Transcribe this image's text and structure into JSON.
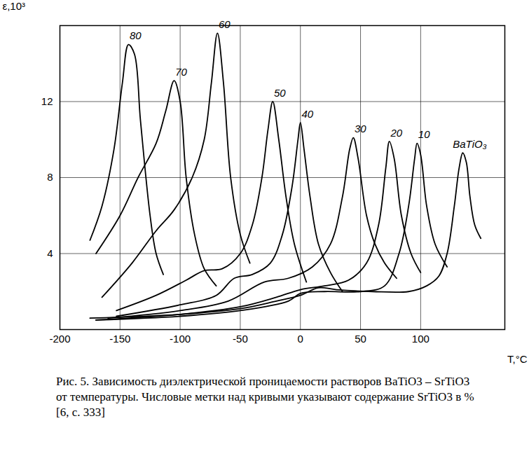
{
  "chart_data": {
    "type": "line",
    "caption": "Рис. 5.  Зависимость диэлектрической проницаемости растворов BaTiO3 – SrTiO3 от температуры.  Числовые метки над кривыми указывают содержание SrTiO3 в % [6, с. 333]",
    "x_label": "T,°C",
    "y_label": "ε,10³",
    "xlim": [
      -200,
      170
    ],
    "ylim": [
      0,
      16
    ],
    "xticks": [
      -200,
      -150,
      -100,
      -50,
      0,
      50,
      100
    ],
    "yticks": [
      4,
      8,
      12
    ],
    "grid": true,
    "data_labels": true,
    "series": [
      {
        "name": "80",
        "color": "#000000",
        "x": [
          -175,
          -165,
          -155,
          -148,
          -143,
          -138,
          -133,
          -125,
          -120,
          -114
        ],
        "values": [
          4.7,
          6.5,
          9.5,
          13,
          15,
          14.5,
          11,
          6,
          4,
          2.9
        ]
      },
      {
        "name": "70",
        "color": "#000000",
        "x": [
          -170,
          -150,
          -135,
          -120,
          -112,
          -105,
          -100,
          -95,
          -88,
          -80,
          -70
        ],
        "values": [
          4,
          6,
          8,
          9.8,
          11.5,
          13.1,
          12,
          8,
          5,
          3.2,
          2.3
        ]
      },
      {
        "name": "60",
        "color": "#000000",
        "x": [
          -165,
          -140,
          -120,
          -105,
          -90,
          -80,
          -74,
          -69,
          -64,
          -58,
          -50,
          -42
        ],
        "values": [
          1.7,
          3.5,
          5.2,
          6.3,
          8,
          10,
          13,
          15.6,
          13,
          8,
          5,
          3.5
        ]
      },
      {
        "name": "50",
        "color": "#000000",
        "x": [
          -153,
          -120,
          -95,
          -80,
          -65,
          -50,
          -40,
          -32,
          -27,
          -23,
          -18,
          -12,
          -5,
          5
        ],
        "values": [
          1,
          1.8,
          2.6,
          3.1,
          3.2,
          4,
          5.5,
          8,
          10.5,
          12,
          10,
          7,
          4.5,
          2.5
        ]
      },
      {
        "name": "40",
        "color": "#000000",
        "x": [
          -153,
          -100,
          -70,
          -55,
          -40,
          -25,
          -15,
          -7,
          -2,
          0,
          3,
          8,
          15,
          25,
          35
        ],
        "values": [
          0.7,
          1.3,
          1.8,
          2.7,
          2.9,
          3.5,
          5,
          7.5,
          10,
          10.9,
          9.5,
          7,
          4.5,
          3,
          2
        ]
      },
      {
        "name": "30",
        "color": "#000000",
        "x": [
          -160,
          -100,
          -60,
          -30,
          -10,
          10,
          25,
          35,
          41,
          44,
          48,
          55,
          62,
          70,
          80
        ],
        "values": [
          0.6,
          1,
          1.5,
          2.5,
          2.7,
          3.3,
          4.5,
          7,
          9.5,
          10.1,
          9,
          6,
          4.5,
          3.5,
          2.7
        ]
      },
      {
        "name": "20",
        "color": "#000000",
        "x": [
          -170,
          -100,
          -50,
          -20,
          0,
          20,
          40,
          55,
          65,
          71,
          74,
          78,
          84,
          92,
          100
        ],
        "values": [
          0.5,
          0.8,
          1.2,
          1.7,
          2.1,
          2.3,
          2.6,
          3.5,
          5.5,
          8.5,
          9.9,
          9,
          6,
          4,
          3
        ]
      },
      {
        "name": "10",
        "color": "#000000",
        "x": [
          -170,
          -100,
          -50,
          -10,
          0,
          20,
          50,
          70,
          82,
          90,
          95,
          97,
          100,
          105,
          112,
          122
        ],
        "values": [
          0.5,
          0.7,
          1,
          1.5,
          1.9,
          2,
          2,
          2.3,
          4,
          6.5,
          9,
          9.8,
          9.2,
          6.5,
          4.5,
          3.3
        ]
      },
      {
        "name": "BaTiO₃",
        "color": "#000000",
        "x": [
          -175,
          -100,
          -50,
          -20,
          0,
          15,
          30,
          60,
          90,
          105,
          115,
          122,
          128,
          132,
          135,
          138,
          141,
          145,
          150
        ],
        "values": [
          0.6,
          0.8,
          1.1,
          1.5,
          1.8,
          2.2,
          2.1,
          2,
          2,
          2.3,
          2.8,
          4,
          6.5,
          8.5,
          9.3,
          8.8,
          7,
          5.5,
          4.8
        ]
      }
    ]
  }
}
